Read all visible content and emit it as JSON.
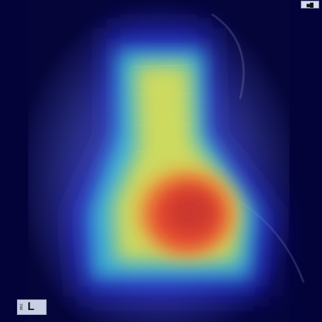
{
  "image": {
    "description_type": "lateral lumbar spine radiograph with saliency heatmap overlay",
    "marker": {
      "letter": "L",
      "small_text": "DRZ"
    },
    "corner_tag": "■▇"
  },
  "colors": {
    "background": "#00003a",
    "heat_low": "#1a1aff",
    "heat_mid_cyan": "#33e0e0",
    "heat_mid_yellow": "#e8e84a",
    "heat_high": "#e83a2a"
  }
}
